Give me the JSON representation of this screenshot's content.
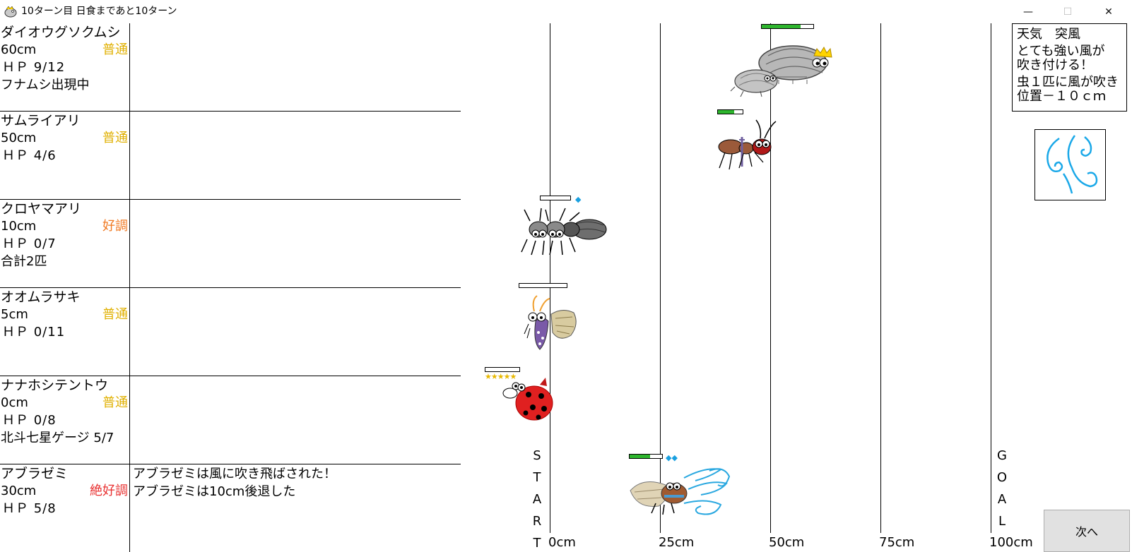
{
  "window": {
    "title": "10ターン目 日食まであと10ターン",
    "min_glyph": "—",
    "max_glyph": "☐",
    "close_glyph": "✕"
  },
  "bugs": [
    {
      "name": "ダイオウグソクムシ",
      "size": "60cm",
      "condition": "普通",
      "condition_color": "#e0b000",
      "hp": "ＨＰ 9/12",
      "extra": "フナムシ出現中",
      "log": []
    },
    {
      "name": "サムライアリ",
      "size": "50cm",
      "condition": "普通",
      "condition_color": "#e0b000",
      "hp": "ＨＰ 4/6",
      "extra": "",
      "log": []
    },
    {
      "name": "クロヤマアリ",
      "size": "10cm",
      "condition": "好調",
      "condition_color": "#f07820",
      "hp": "ＨＰ 0/7",
      "extra": "合計2匹",
      "log": []
    },
    {
      "name": "オオムラサキ",
      "size": "5cm",
      "condition": "普通",
      "condition_color": "#e0b000",
      "hp": "ＨＰ 0/11",
      "extra": "",
      "log": []
    },
    {
      "name": "ナナホシテントウ",
      "size": "0cm",
      "condition": "普通",
      "condition_color": "#e0b000",
      "hp": "ＨＰ 0/8",
      "extra": "北斗七星ゲージ 5/7",
      "log": []
    },
    {
      "name": "アブラゼミ",
      "size": "30cm",
      "condition": "絶好調",
      "condition_color": "#e83030",
      "hp": "ＨＰ 5/8",
      "extra": "",
      "log": [
        "アブラゼミは風に吹き飛ばされた！",
        "アブラゼミは10cm後退した"
      ]
    }
  ],
  "track": {
    "ticks": [
      "0cm",
      "25cm",
      "50cm",
      "75cm",
      "100cm"
    ],
    "start_letters": [
      "S",
      "T",
      "A",
      "R",
      "T"
    ],
    "goal_letters": [
      "G",
      "O",
      "A",
      "L"
    ],
    "hp_fill": [
      0.75,
      0.667,
      0,
      0,
      0,
      0.625
    ],
    "stars": "★★★★★"
  },
  "weather": {
    "title": "天気　突風",
    "desc_1": "とても強い風が",
    "desc_2": "吹き付ける！",
    "effect_1": "虫１匹に風が吹き",
    "effect_2": "位置－１０ｃｍ",
    "icon": "wind-icon"
  },
  "next_label": "次へ"
}
